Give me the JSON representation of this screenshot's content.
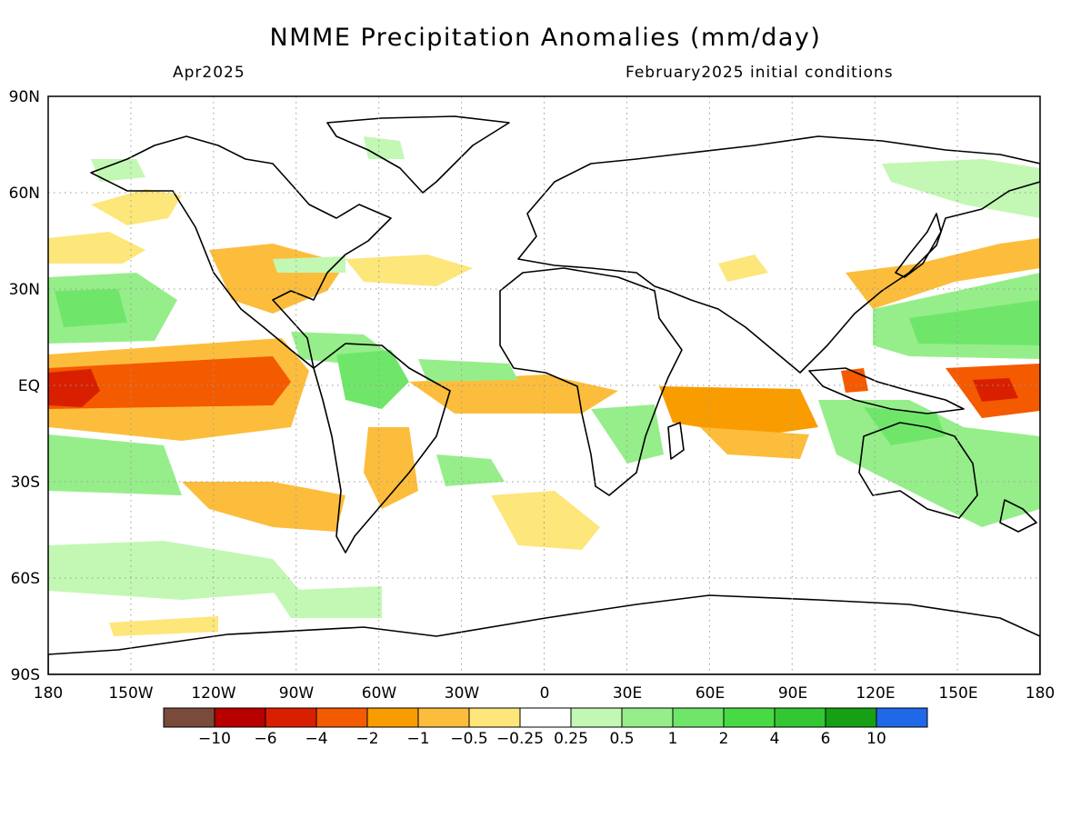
{
  "header": {
    "title": "NMME Precipitation Anomalies (mm/day)",
    "valid_month": "Apr2025",
    "init_note": "February2025 initial conditions"
  },
  "map": {
    "lat_labels": [
      "90N",
      "60N",
      "30N",
      "EQ",
      "30S",
      "60S",
      "90S"
    ],
    "lon_labels": [
      "180",
      "150W",
      "120W",
      "90W",
      "60W",
      "30W",
      "0",
      "30E",
      "60E",
      "90E",
      "120E",
      "150E",
      "180"
    ],
    "gridlines": "dotted",
    "projection": "cylindrical equidistant"
  },
  "colorbar": {
    "colors": [
      "#7a4a3a",
      "#b80000",
      "#d82000",
      "#f45a00",
      "#f99c00",
      "#fcbd3c",
      "#fde67a",
      "#ffffff",
      "#c2f8b4",
      "#96ee8a",
      "#6fe66a",
      "#48da45",
      "#33c733",
      "#15a015",
      "#1f68e8"
    ],
    "tick_labels": [
      "−10",
      "−6",
      "−4",
      "−2",
      "−1",
      "−0.5",
      "−0.25",
      "0.25",
      "0.5",
      "1",
      "2",
      "4",
      "6",
      "10"
    ]
  },
  "chart_data": {
    "type": "heatmap",
    "title": "NMME Precipitation Anomalies (mm/day)",
    "subtitle_left": "Apr2025",
    "subtitle_right": "February2025 initial conditions",
    "x_range": [
      -180,
      180
    ],
    "y_range": [
      -90,
      90
    ],
    "anomaly_regions": [
      {
        "region": "central-eastern equatorial Pacific",
        "lon": [
          -180,
          -100
        ],
        "lat": [
          -5,
          5
        ],
        "category": "-4 to -2"
      },
      {
        "region": "western equatorial Pacific (east of New Guinea)",
        "lon": [
          150,
          180
        ],
        "lat": [
          -7,
          3
        ],
        "category": "-6 to -4"
      },
      {
        "region": "equatorial Indian Ocean",
        "lon": [
          45,
          100
        ],
        "lat": [
          -10,
          0
        ],
        "category": "-2 to -1"
      },
      {
        "region": "Maritime Continent / N Australia",
        "lon": [
          100,
          150
        ],
        "lat": [
          -20,
          0
        ],
        "category": "0.5 to 2"
      },
      {
        "region": "western North Pacific",
        "lon": [
          120,
          180
        ],
        "lat": [
          5,
          30
        ],
        "category": "0.5 to 2"
      },
      {
        "region": "Kuroshio extension",
        "lon": [
          115,
          180
        ],
        "lat": [
          25,
          40
        ],
        "category": "-1 to -0.25"
      },
      {
        "region": "South Pacific",
        "lon": [
          -150,
          -75
        ],
        "lat": [
          -45,
          -30
        ],
        "category": "-1 to -0.25"
      },
      {
        "region": "northern South America",
        "lon": [
          -75,
          -40
        ],
        "lat": [
          -10,
          5
        ],
        "category": "0.25 to 1"
      },
      {
        "region": "equatorial Atlantic",
        "lon": [
          -30,
          10
        ],
        "lat": [
          -6,
          0
        ],
        "category": "-1 to -0.25"
      },
      {
        "region": "southeastern US",
        "lon": [
          -110,
          -60
        ],
        "lat": [
          25,
          35
        ],
        "category": "-1 to -0.25"
      }
    ]
  }
}
